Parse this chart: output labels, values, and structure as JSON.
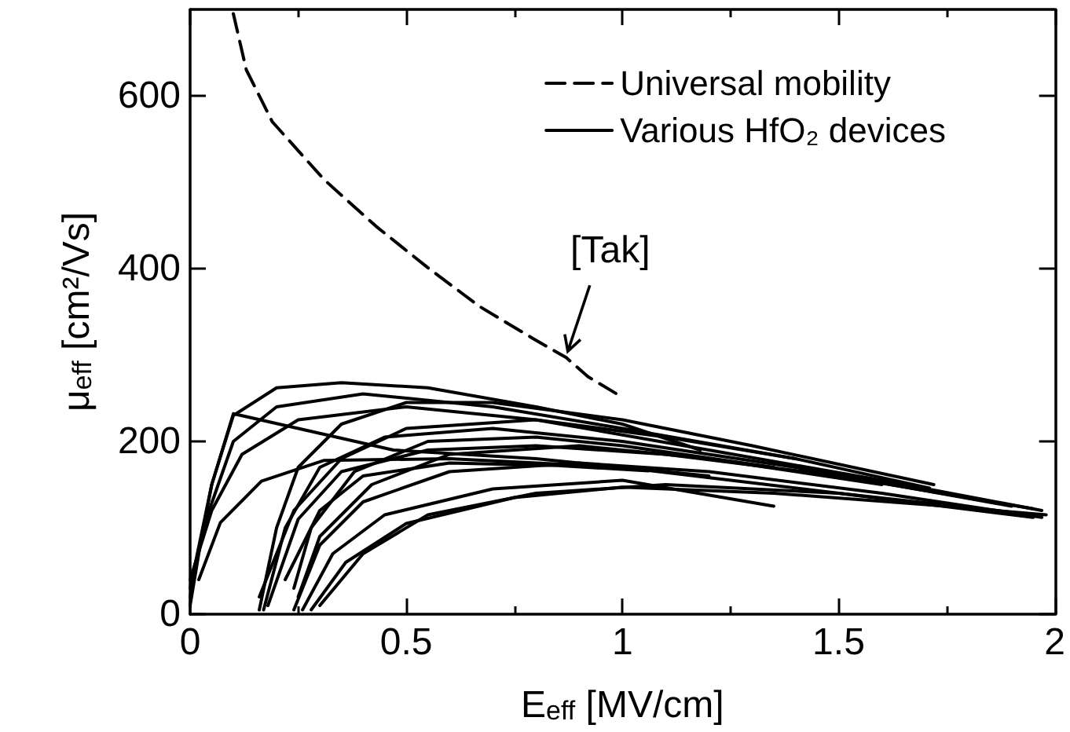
{
  "chart_data": {
    "type": "line",
    "xlabel": "E$_{eff}$ [MV/cm]",
    "ylabel": "μ$_{eff}$ [cm²/Vs]",
    "xlim": [
      0,
      2
    ],
    "xticks": [
      0,
      {
        "value": 0.25,
        "label": null
      },
      0.5,
      {
        "value": 0.75,
        "label": null
      },
      1,
      {
        "value": 1.25,
        "label": null
      },
      1.5,
      {
        "value": 1.75,
        "label": null
      },
      2
    ],
    "ylim": [
      0,
      700
    ],
    "yticks": [
      0,
      200,
      400,
      600
    ],
    "legend": "top right",
    "marker": "none",
    "grid": false,
    "annotations": [
      {
        "text": "[Tak]",
        "x": 0.87,
        "y": 297
      }
    ],
    "series": [
      {
        "name": "Universal mobility",
        "color": "#000000",
        "line_style": "dashed",
        "x": [
          0.1,
          0.13,
          0.19,
          0.31,
          0.43,
          0.55,
          0.67,
          0.8,
          0.87,
          0.92,
          1.0
        ],
        "values": [
          695,
          630,
          570,
          503,
          449,
          401,
          356,
          317,
          297,
          275,
          251
        ]
      },
      {
        "name": "Various HfO₂ devices",
        "color": "#000000",
        "line_style": "solid",
        "x": [
          0.0,
          0.05,
          0.1,
          0.2,
          0.35,
          0.55,
          0.8,
          1.0,
          1.18
        ],
        "values": [
          30,
          150,
          230,
          262,
          268,
          262,
          240,
          220,
          190
        ]
      },
      {
        "color": "#000000",
        "line_style": "solid",
        "x": [
          0.0,
          0.03,
          0.1,
          0.2,
          0.4,
          0.7,
          1.0,
          1.4,
          1.71
        ],
        "values": [
          10,
          100,
          200,
          240,
          255,
          240,
          215,
          180,
          146
        ]
      },
      {
        "color": "#000000",
        "line_style": "solid",
        "x": [
          0.0,
          0.05,
          0.12,
          0.25,
          0.5,
          0.8,
          1.2,
          1.6,
          1.97
        ],
        "values": [
          40,
          120,
          185,
          225,
          240,
          225,
          190,
          155,
          120
        ]
      },
      {
        "color": "#000000",
        "line_style": "solid",
        "x": [
          0.02,
          0.07,
          0.165,
          0.31,
          0.6,
          1.0,
          1.5,
          1.95
        ],
        "values": [
          40,
          106,
          154,
          178,
          180,
          170,
          140,
          112
        ]
      },
      {
        "color": "#000000",
        "line_style": "solid",
        "x": [
          0.0,
          0.05,
          0.1,
          0.25,
          0.47,
          0.8,
          1.2
        ],
        "values": [
          20,
          150,
          232,
          215,
          190,
          180,
          160
        ]
      },
      {
        "color": "#000000",
        "line_style": "solid",
        "x": [
          0.16,
          0.2,
          0.25,
          0.35,
          0.5,
          0.7,
          1.0,
          1.3,
          1.72
        ],
        "values": [
          5,
          100,
          170,
          220,
          245,
          245,
          225,
          195,
          150
        ]
      },
      {
        "color": "#000000",
        "line_style": "solid",
        "x": [
          0.17,
          0.22,
          0.3,
          0.45,
          0.7,
          1.0,
          1.4,
          1.9
        ],
        "values": [
          5,
          100,
          170,
          205,
          215,
          200,
          170,
          125
        ]
      },
      {
        "color": "#000000",
        "line_style": "solid",
        "x": [
          0.18,
          0.25,
          0.35,
          0.55,
          0.8,
          1.1,
          1.5,
          1.95
        ],
        "values": [
          10,
          110,
          165,
          190,
          195,
          185,
          160,
          122
        ]
      },
      {
        "color": "#000000",
        "line_style": "solid",
        "x": [
          0.16,
          0.24,
          0.35,
          0.5,
          0.8,
          1.1,
          1.4
        ],
        "values": [
          20,
          120,
          180,
          215,
          225,
          205,
          180
        ]
      },
      {
        "color": "#000000",
        "line_style": "solid",
        "x": [
          0.24,
          0.3,
          0.4,
          0.6,
          0.9,
          1.2,
          1.6,
          1.97
        ],
        "values": [
          5,
          80,
          130,
          165,
          175,
          165,
          140,
          112
        ]
      },
      {
        "color": "#000000",
        "line_style": "solid",
        "x": [
          0.26,
          0.33,
          0.45,
          0.7,
          1.0,
          1.35
        ],
        "values": [
          5,
          70,
          115,
          145,
          155,
          125
        ]
      },
      {
        "color": "#000000",
        "line_style": "solid",
        "x": [
          0.28,
          0.36,
          0.5,
          0.75,
          1.0,
          1.35,
          1.75,
          1.98
        ],
        "values": [
          5,
          60,
          105,
          135,
          147,
          140,
          125,
          115
        ]
      },
      {
        "color": "#000000",
        "line_style": "solid",
        "x": [
          0.3,
          0.4,
          0.55,
          0.8,
          1.1,
          1.5,
          1.9
        ],
        "values": [
          10,
          70,
          115,
          140,
          150,
          140,
          118
        ]
      },
      {
        "color": "#000000",
        "line_style": "solid",
        "x": [
          0.25,
          0.3,
          0.42,
          0.6,
          0.9,
          1.2,
          1.6
        ],
        "values": [
          20,
          90,
          150,
          185,
          195,
          180,
          150
        ]
      },
      {
        "color": "#000000",
        "line_style": "solid",
        "x": [
          0.24,
          0.28,
          0.38,
          0.55,
          0.8,
          1.0,
          1.35
        ],
        "values": [
          30,
          100,
          165,
          200,
          205,
          195,
          170
        ]
      },
      {
        "color": "#000000",
        "line_style": "solid",
        "x": [
          0.22,
          0.3,
          0.4,
          0.6,
          0.85,
          1.06
        ],
        "values": [
          40,
          120,
          160,
          175,
          172,
          166
        ]
      }
    ]
  }
}
